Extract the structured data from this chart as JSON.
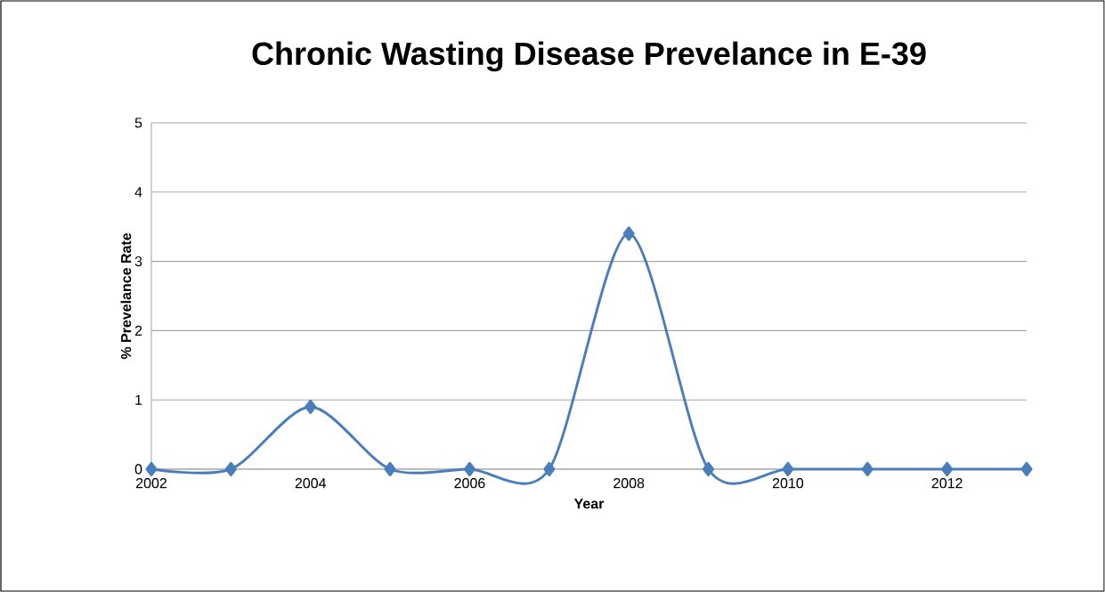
{
  "chart_data": {
    "type": "line",
    "title": "Chronic Wasting Disease Prevelance in E-39",
    "xlabel": "Year",
    "ylabel": "% Prevelance Rate",
    "x": [
      2002,
      2003,
      2004,
      2005,
      2006,
      2007,
      2008,
      2009,
      2010,
      2011,
      2012,
      2013
    ],
    "values": [
      0,
      0,
      0.9,
      0,
      0,
      0,
      3.4,
      0,
      0,
      0,
      0,
      0
    ],
    "color": "#4a7ebb",
    "marker": "diamond",
    "line_style": "solid",
    "xlim": [
      2002,
      2013
    ],
    "xticks": [
      2002,
      2004,
      2006,
      2008,
      2010,
      2012
    ],
    "ylim": [
      0,
      5
    ],
    "yticks": [
      0,
      1,
      2,
      3,
      4,
      5
    ],
    "grid": "y"
  }
}
